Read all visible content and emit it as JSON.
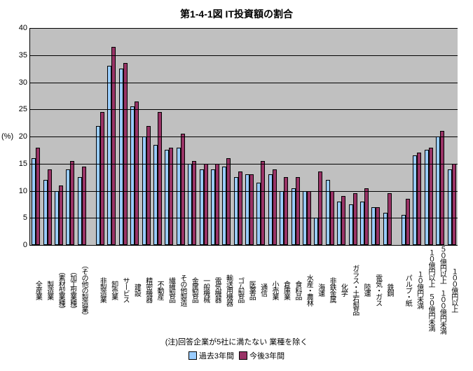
{
  "chart": {
    "type": "bar",
    "title": "第1-4-1図 IT投資額の割合",
    "ylabel": "(%)",
    "ylim": [
      0,
      40
    ],
    "ytick_step": 5,
    "background_color": "#c0c0c0",
    "grid_color": "#000000",
    "axis_color": "#000000",
    "title_fontsize": 14,
    "tick_fontsize": 11,
    "xlabel_fontsize": 10,
    "bar_border_color": "#000000",
    "legend_position": "bottom-center",
    "series": [
      {
        "name": "過去3年間",
        "color": "#99ccff"
      },
      {
        "name": "今後3年間",
        "color": "#993366"
      }
    ],
    "gap_after": [
      4,
      30
    ],
    "categories": [
      "全産業",
      "製造業",
      "（素材型業種）",
      "（加工型業種）",
      "（その他の製造業）",
      "非製造業",
      "卸売業",
      "サービス",
      "建設",
      "精密機器",
      "不動産",
      "繊維製品",
      "その他製造",
      "金属製品",
      "一般機械",
      "電気機器",
      "輸送用機器",
      "ゴム製品",
      "医薬品",
      "通信",
      "小売業",
      "倉庫業",
      "食料品",
      "水産・農林",
      "海運",
      "非鉄金属",
      "化学",
      "ガラス・土石製品",
      "陸運",
      "電気・ガス",
      "鉄鋼",
      "パルプ・紙",
      "１０億円未満",
      "１０億円以上　５０億円未満",
      "５０億円以上　１００億円未満",
      "１００億円以上"
    ],
    "values_a": [
      16.0,
      12.0,
      10.0,
      14.0,
      12.5,
      22.0,
      33.0,
      32.5,
      25.5,
      20.0,
      18.5,
      17.5,
      18.0,
      15.0,
      14.0,
      14.0,
      14.5,
      12.5,
      13.0,
      11.5,
      13.0,
      10.0,
      10.5,
      10.0,
      5.0,
      12.0,
      8.0,
      7.5,
      8.0,
      7.0,
      6.0,
      5.5,
      16.5,
      17.5,
      20.0,
      14.0
    ],
    "values_b": [
      18.0,
      14.0,
      11.0,
      15.5,
      14.5,
      24.5,
      36.5,
      33.5,
      26.5,
      22.0,
      24.5,
      18.0,
      20.5,
      15.5,
      15.0,
      15.0,
      16.0,
      13.5,
      13.0,
      15.5,
      14.0,
      12.5,
      12.5,
      10.0,
      13.5,
      10.0,
      9.0,
      9.5,
      10.5,
      7.0,
      9.5,
      8.5,
      17.0,
      18.0,
      21.0,
      15.0
    ],
    "note": "(注)回答企業が5社に満たない 業種を除く"
  }
}
